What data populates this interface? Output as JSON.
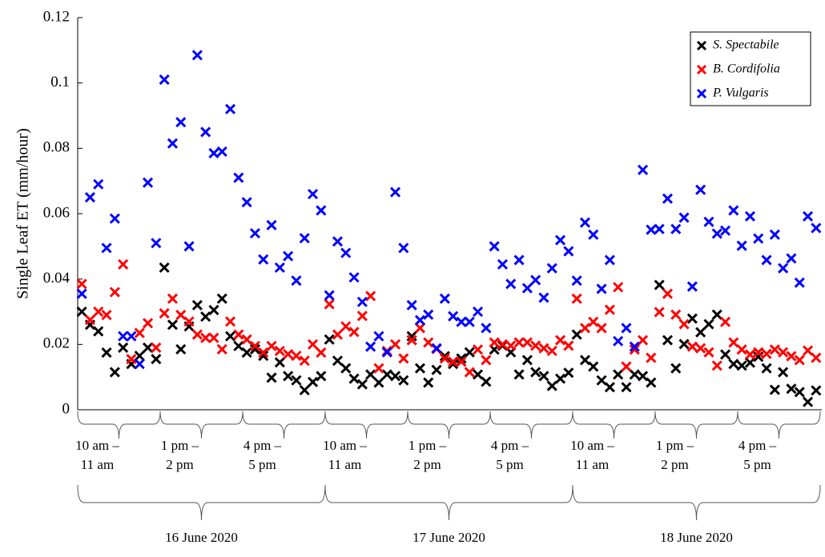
{
  "chart_data": {
    "type": "scatter",
    "y_label": "Single Leaf ET (mm/hour)",
    "ylim": [
      0,
      0.12
    ],
    "yticks": [
      0,
      0.02,
      0.04,
      0.06,
      0.08,
      0.1,
      0.12
    ],
    "legend": "top-right",
    "categories": [
      null,
      null,
      null,
      null,
      null,
      null,
      null,
      null,
      null,
      null,
      null,
      null,
      null,
      null,
      null,
      null,
      null,
      null,
      null,
      null,
      null,
      null,
      null,
      null,
      null,
      null,
      null,
      null,
      null,
      null,
      null,
      null,
      null,
      null,
      null,
      null,
      null,
      null,
      null,
      null,
      null,
      null,
      null,
      null,
      null,
      null,
      null,
      null,
      null,
      null,
      null,
      null,
      null,
      null,
      null,
      null,
      null,
      null,
      null,
      null,
      null,
      null,
      null,
      null,
      null,
      null,
      null,
      null,
      null,
      null,
      null,
      null,
      null,
      null,
      null,
      null,
      null,
      null,
      null,
      null,
      null,
      null,
      null,
      null,
      null,
      null,
      null,
      null,
      null,
      null
    ],
    "x_groups": [
      [
        "10 am –",
        "11 am"
      ],
      [
        "1 pm –",
        "2 pm"
      ],
      [
        "4 pm –",
        "5 pm"
      ],
      [
        "10 am –",
        "11 am"
      ],
      [
        "1 pm –",
        "2 pm"
      ],
      [
        "4 pm –",
        "5 pm"
      ],
      [
        "10 am –",
        "11 am"
      ],
      [
        "1 pm –",
        "2 pm"
      ],
      [
        "4 pm –",
        "5 pm"
      ]
    ],
    "days": [
      "16 June 2020",
      "17 June 2020",
      "18 June 2020"
    ],
    "series": [
      {
        "name": "S. Spectabile",
        "color": "#000000",
        "values": [
          0.03,
          0.026,
          0.024,
          0.0175,
          0.0115,
          0.019,
          0.014,
          0.0165,
          0.019,
          0.0155,
          0.0435,
          0.026,
          0.0185,
          0.0255,
          0.032,
          0.0285,
          0.0305,
          0.034,
          0.0225,
          0.0195,
          0.0175,
          0.0185,
          0.0165,
          0.0098,
          0.0145,
          0.0103,
          0.009,
          0.006,
          0.0085,
          0.0103,
          0.0215,
          0.015,
          0.0127,
          0.0095,
          0.0078,
          0.0108,
          0.0083,
          0.0108,
          0.0103,
          0.009,
          0.0225,
          0.0127,
          0.0083,
          0.0122,
          0.0164,
          0.014,
          0.0157,
          0.0176,
          0.0108,
          0.0086,
          0.0184,
          0.0196,
          0.0176,
          0.0108,
          0.0152,
          0.0115,
          0.0103,
          0.0073,
          0.0095,
          0.0113,
          0.023,
          0.0152,
          0.0132,
          0.009,
          0.0069,
          0.0108,
          0.0069,
          0.0108,
          0.0103,
          0.0083,
          0.0382,
          0.0213,
          0.0127,
          0.0201,
          0.0279,
          0.0237,
          0.0262,
          0.0291,
          0.0169,
          0.014,
          0.0135,
          0.0144,
          0.0162,
          0.0127,
          0.0061,
          0.0115,
          0.0064,
          0.0054,
          0.0024,
          0.0059
        ]
      },
      {
        "name": "B. Cordifolia",
        "color": "#ff0000",
        "values": [
          0.0385,
          0.0275,
          0.03,
          0.029,
          0.036,
          0.0445,
          0.0155,
          0.0235,
          0.0265,
          0.019,
          0.0295,
          0.034,
          0.029,
          0.027,
          0.023,
          0.022,
          0.022,
          0.0185,
          0.027,
          0.023,
          0.0215,
          0.0195,
          0.0175,
          0.0195,
          0.018,
          0.017,
          0.0165,
          0.015,
          0.02,
          0.0175,
          0.0323,
          0.023,
          0.0255,
          0.0238,
          0.0287,
          0.0348,
          0.0127,
          0.018,
          0.02,
          0.0157,
          0.0213,
          0.025,
          0.0206,
          0.0186,
          0.0157,
          0.0147,
          0.0147,
          0.0115,
          0.0184,
          0.0152,
          0.0206,
          0.02,
          0.0196,
          0.0206,
          0.0206,
          0.0196,
          0.0188,
          0.018,
          0.0213,
          0.0196,
          0.034,
          0.025,
          0.0269,
          0.025,
          0.0306,
          0.0375,
          0.0132,
          0.0184,
          0.0213,
          0.0159,
          0.0299,
          0.0355,
          0.0291,
          0.0262,
          0.0193,
          0.0188,
          0.0176,
          0.0135,
          0.0269,
          0.0206,
          0.0184,
          0.0169,
          0.0176,
          0.0171,
          0.0184,
          0.0176,
          0.0164,
          0.0152,
          0.0181,
          0.0159
        ]
      },
      {
        "name": "P. Vulgaris",
        "color": "#0000ff",
        "values": [
          0.0355,
          0.065,
          0.069,
          0.0495,
          0.0585,
          0.0225,
          0.0225,
          0.014,
          0.0695,
          0.051,
          0.101,
          0.0815,
          0.088,
          0.05,
          0.1085,
          0.085,
          0.0785,
          0.079,
          0.092,
          0.071,
          0.0635,
          0.054,
          0.046,
          0.0565,
          0.0435,
          0.047,
          0.0395,
          0.0525,
          0.066,
          0.061,
          0.035,
          0.0515,
          0.048,
          0.0405,
          0.033,
          0.0193,
          0.0225,
          0.0176,
          0.0666,
          0.0495,
          0.032,
          0.0274,
          0.0291,
          0.0188,
          0.034,
          0.0286,
          0.0269,
          0.0269,
          0.03,
          0.025,
          0.05,
          0.0445,
          0.0385,
          0.0458,
          0.0372,
          0.0397,
          0.0343,
          0.0433,
          0.0519,
          0.0485,
          0.0395,
          0.0573,
          0.0536,
          0.037,
          0.0458,
          0.021,
          0.025,
          0.0193,
          0.0734,
          0.0551,
          0.0553,
          0.0646,
          0.0553,
          0.0588,
          0.0377,
          0.0673,
          0.0575,
          0.0539,
          0.0548,
          0.061,
          0.0502,
          0.0592,
          0.0524,
          0.0458,
          0.0536,
          0.0433,
          0.0463,
          0.0389,
          0.0592,
          0.0556
        ]
      }
    ]
  }
}
